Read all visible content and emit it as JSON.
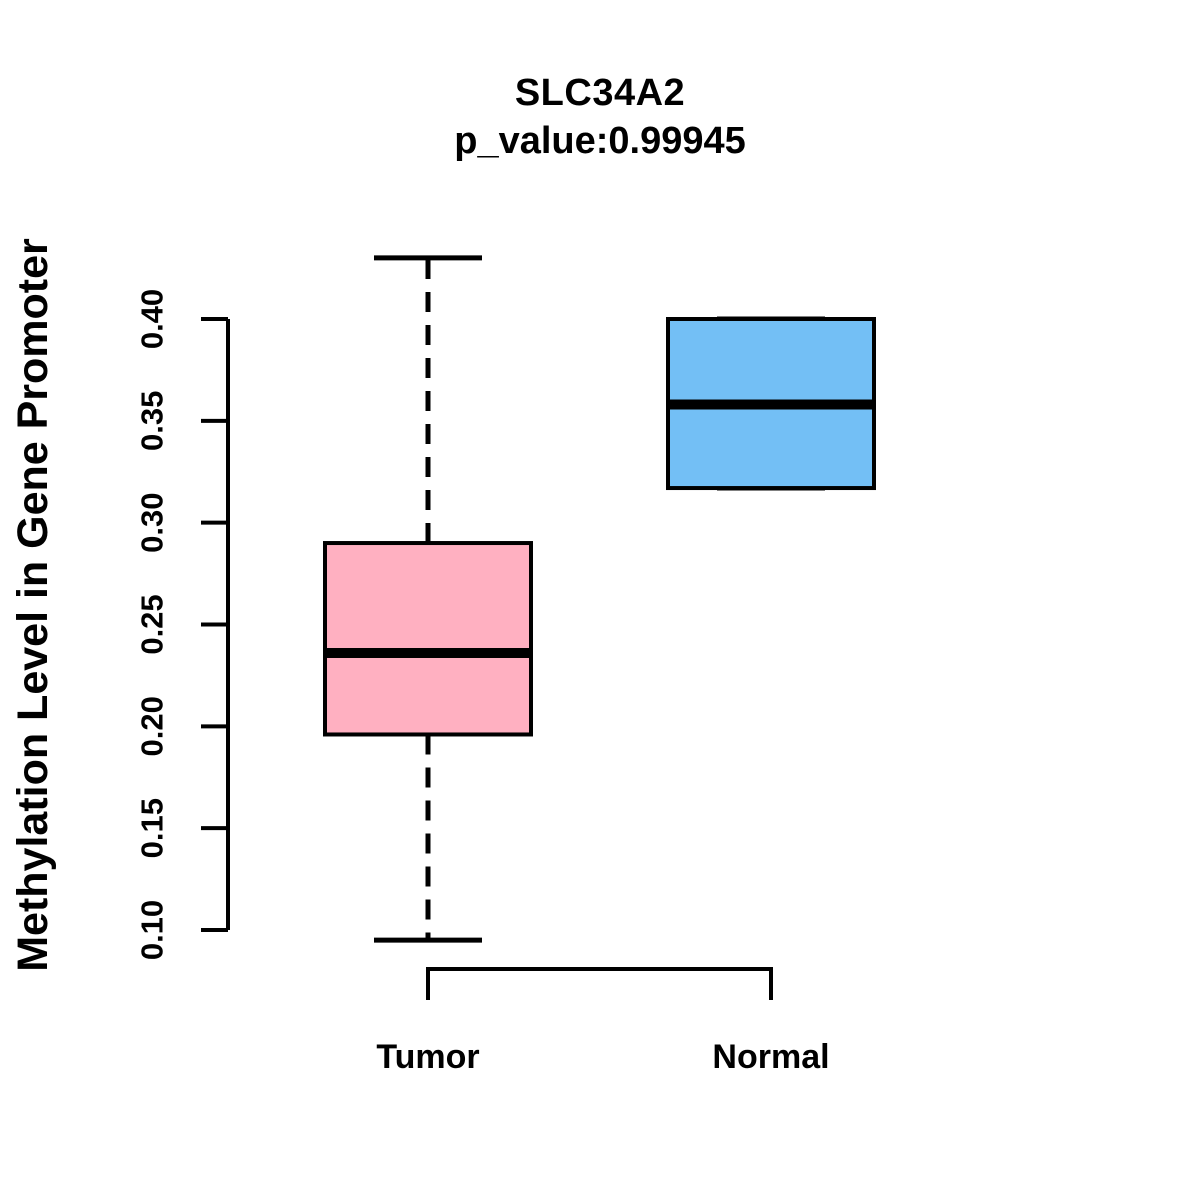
{
  "chart_data": {
    "type": "boxplot",
    "title": "SLC34A2",
    "subtitle": "p_value:0.99945",
    "xlabel": "",
    "ylabel": "Methylation Level in Gene Promoter",
    "categories": [
      "Tumor",
      "Normal"
    ],
    "ytick_labels": [
      "0.10",
      "0.15",
      "0.20",
      "0.25",
      "0.30",
      "0.35",
      "0.40"
    ],
    "ylim": [
      0.095,
      0.43
    ],
    "grid": false,
    "legend_position": "none",
    "axis_color": "#000000",
    "series": [
      {
        "name": "Tumor",
        "box_color": "#FFB0C1",
        "border_color": "#000000",
        "whisker_low": 0.095,
        "q1": 0.196,
        "median": 0.236,
        "q3": 0.29,
        "whisker_high": 0.43,
        "whisker_line_style": "dashed"
      },
      {
        "name": "Normal",
        "box_color": "#73BFF5",
        "border_color": "#000000",
        "whisker_low": 0.317,
        "q1": 0.317,
        "median": 0.358,
        "q3": 0.4,
        "whisker_high": 0.4,
        "whisker_line_style": "none"
      }
    ]
  }
}
